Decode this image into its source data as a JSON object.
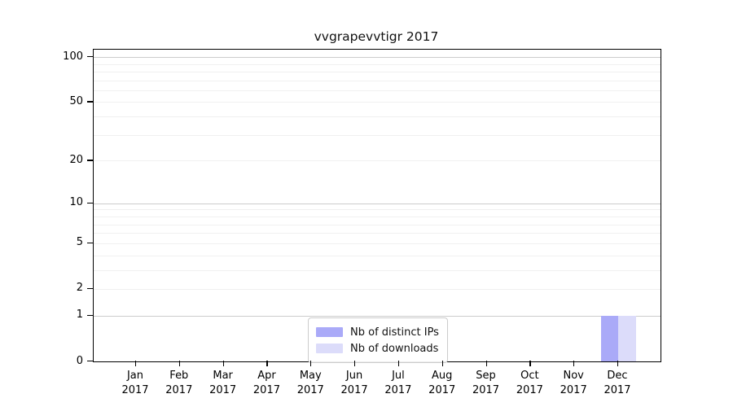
{
  "chart_data": {
    "type": "bar",
    "title": "vvgrapevvtigr 2017",
    "x_axis": {
      "categories": [
        {
          "month": "Jan",
          "year": "2017"
        },
        {
          "month": "Feb",
          "year": "2017"
        },
        {
          "month": "Mar",
          "year": "2017"
        },
        {
          "month": "Apr",
          "year": "2017"
        },
        {
          "month": "May",
          "year": "2017"
        },
        {
          "month": "Jun",
          "year": "2017"
        },
        {
          "month": "Jul",
          "year": "2017"
        },
        {
          "month": "Aug",
          "year": "2017"
        },
        {
          "month": "Sep",
          "year": "2017"
        },
        {
          "month": "Oct",
          "year": "2017"
        },
        {
          "month": "Nov",
          "year": "2017"
        },
        {
          "month": "Dec",
          "year": "2017"
        }
      ]
    },
    "y_axis": {
      "scale": "log1p",
      "ylim": [
        0,
        112
      ],
      "ticks": [
        0,
        1,
        2,
        5,
        10,
        20,
        50,
        100
      ],
      "major_gridlines": [
        1,
        10,
        100
      ],
      "minor_gridlines": [
        2,
        3,
        4,
        5,
        6,
        7,
        8,
        9,
        20,
        30,
        40,
        50,
        60,
        70,
        80,
        90
      ]
    },
    "series": [
      {
        "name": "Nb of distinct IPs",
        "color": "#aaaaf8",
        "values": [
          0,
          0,
          0,
          0,
          0,
          0,
          0,
          0,
          0,
          0,
          0,
          1
        ]
      },
      {
        "name": "Nb of downloads",
        "color": "#dcdcfa",
        "values": [
          0,
          0,
          0,
          0,
          0,
          0,
          0,
          0,
          0,
          0,
          0,
          1
        ]
      }
    ],
    "legend": {
      "position": "lower center"
    },
    "grid": true
  },
  "colors": {
    "background": "#ffffff",
    "axis": "#000000",
    "major_grid": "#cccccc",
    "minor_grid": "#f0f0f0",
    "tick_label": "#000000"
  }
}
